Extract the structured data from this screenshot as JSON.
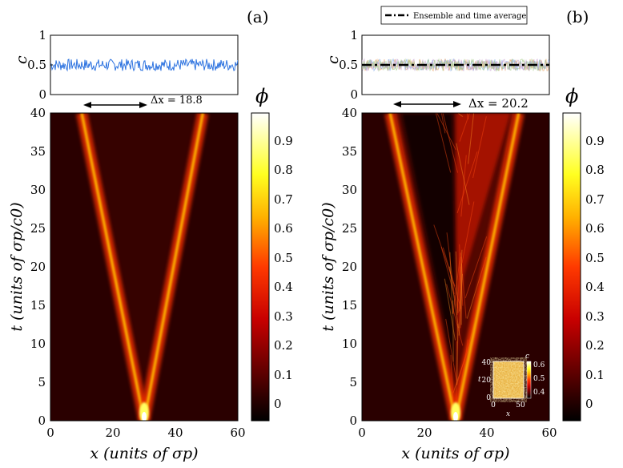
{
  "chart_data": [
    {
      "type": "heatmap",
      "panel_label": "(a)",
      "top_plot": {
        "type": "line",
        "ylabel": "c",
        "ylim": [
          0,
          1
        ],
        "yticks": [
          "0",
          "0.5",
          "1"
        ],
        "mean_value": 0.5,
        "fluctuation_range": [
          0.4,
          0.6
        ],
        "series": [
          {
            "name": "c(t)",
            "color": "#2f74e0"
          }
        ]
      },
      "separation_label": "Δx = 18.8",
      "xlabel": "x (units of σp)",
      "ylabel": "t (units of σp/c0)",
      "xlim": [
        0,
        60
      ],
      "ylim": [
        0,
        40
      ],
      "xticks": [
        "0",
        "20",
        "40",
        "60"
      ],
      "yticks": [
        "0",
        "5",
        "10",
        "15",
        "20",
        "25",
        "30",
        "35",
        "40"
      ],
      "fronts": [
        {
          "name": "left-front",
          "x_at_t0": 30,
          "x_at_t40": 10
        },
        {
          "name": "right-front",
          "x_at_t0": 30,
          "x_at_t40": 48.8
        }
      ],
      "colorbar": {
        "label": "ϕ",
        "range": [
          -0.05,
          1.0
        ],
        "ticks": [
          "0",
          "0.1",
          "0.2",
          "0.3",
          "0.4",
          "0.5",
          "0.6",
          "0.7",
          "0.8",
          "0.9"
        ]
      }
    },
    {
      "type": "heatmap",
      "panel_label": "(b)",
      "top_plot": {
        "type": "line",
        "ylabel": "c",
        "ylim": [
          0,
          1
        ],
        "yticks": [
          "0",
          "0.5",
          "1"
        ],
        "mean_value": 0.5,
        "legend": "Ensemble and time average",
        "series": [
          {
            "name": "Ensemble and time average",
            "style": "dash-dot",
            "color": "#000000"
          }
        ]
      },
      "separation_label": "Δx = 20.2",
      "xlabel": "x (units of σp)",
      "ylabel": "t (units of σp/c0)",
      "xlim": [
        0,
        60
      ],
      "ylim": [
        0,
        40
      ],
      "xticks": [
        "0",
        "20",
        "40",
        "60"
      ],
      "yticks": [
        "0",
        "5",
        "10",
        "15",
        "20",
        "25",
        "30",
        "35",
        "40"
      ],
      "fronts": [
        {
          "name": "left-front",
          "x_at_t0": 30,
          "x_at_t40": 9
        },
        {
          "name": "right-front",
          "x_at_t0": 30,
          "x_at_t40": 50.2
        }
      ],
      "colorbar": {
        "label": "ϕ",
        "range": [
          -0.05,
          1.0
        ],
        "ticks": [
          "0",
          "0.1",
          "0.2",
          "0.3",
          "0.4",
          "0.5",
          "0.6",
          "0.7",
          "0.8",
          "0.9"
        ]
      },
      "inset": {
        "xlabel": "x",
        "ylabel": "t",
        "cbar_label": "c",
        "xticks": [
          "0",
          "50"
        ],
        "yticks": [
          "0",
          "20",
          "40"
        ],
        "cbar_ticks": [
          "0.4",
          "0.5",
          "0.6"
        ]
      }
    }
  ]
}
